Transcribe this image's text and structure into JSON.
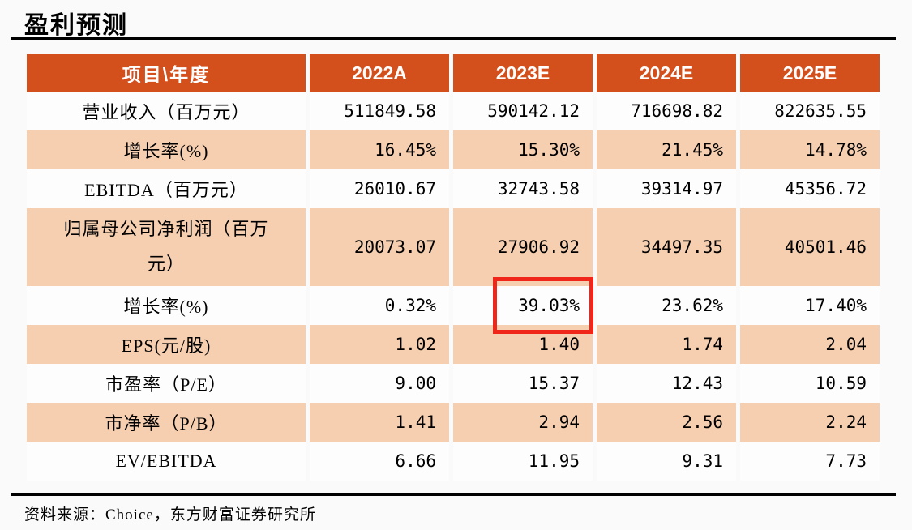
{
  "page": {
    "title": "盈利预测",
    "source_note": "资料来源：Choice，东方财富证券研究所"
  },
  "colors": {
    "page-bg": "#FAFAFA",
    "header-bg": "#D34F1B",
    "row-alt-bg": "#F6CFB0",
    "row-bg": "#FDFDFD",
    "highlight": "#F0261A"
  },
  "chart_data": {
    "type": "table",
    "title": "盈利预测",
    "columns": [
      "项目\\年度",
      "2022A",
      "2023E",
      "2024E",
      "2025E"
    ],
    "rows": [
      {
        "label": "营业收入（百万元）",
        "values": [
          "511849.58",
          "590142.12",
          "716698.82",
          "822635.55"
        ]
      },
      {
        "label": "增长率(%)",
        "values": [
          "16.45%",
          "15.30%",
          "21.45%",
          "14.78%"
        ]
      },
      {
        "label": "EBITDA（百万元）",
        "values": [
          "26010.67",
          "32743.58",
          "39314.97",
          "45356.72"
        ]
      },
      {
        "label": "归属母公司净利润（百万元）",
        "values": [
          "20073.07",
          "27906.92",
          "34497.35",
          "40501.46"
        ]
      },
      {
        "label": "增长率(%)",
        "values": [
          "0.32%",
          "39.03%",
          "23.62%",
          "17.40%"
        ]
      },
      {
        "label": "EPS(元/股)",
        "values": [
          "1.02",
          "1.40",
          "1.74",
          "2.04"
        ]
      },
      {
        "label": "市盈率（P/E）",
        "values": [
          "9.00",
          "15.37",
          "12.43",
          "10.59"
        ]
      },
      {
        "label": "市净率（P/B）",
        "values": [
          "1.41",
          "2.94",
          "2.56",
          "2.24"
        ]
      },
      {
        "label": "EV/EBITDA",
        "values": [
          "6.66",
          "11.95",
          "9.31",
          "7.73"
        ]
      }
    ],
    "highlight": {
      "row_label": "增长率(%)",
      "column": "2023E",
      "value": "39.03%",
      "style": "red-box"
    },
    "layout": {
      "header_align": "center",
      "label_align": "center",
      "value_align": "right"
    }
  }
}
